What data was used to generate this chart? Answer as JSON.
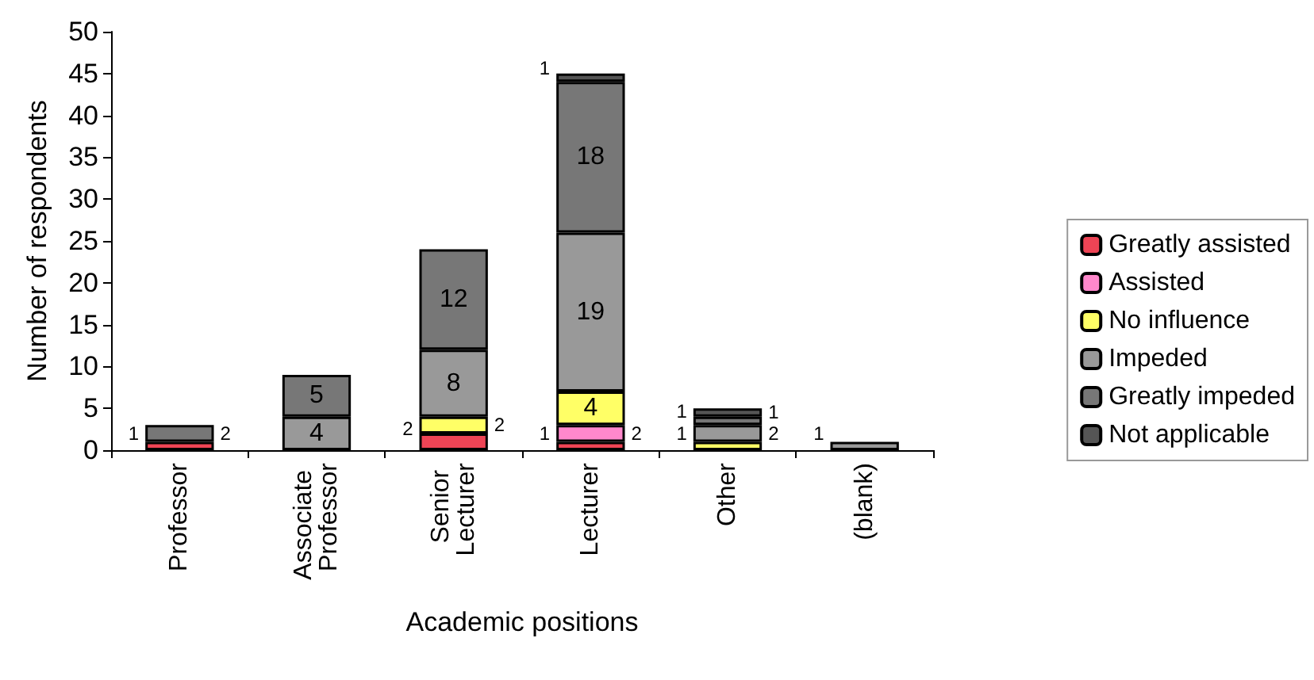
{
  "chart_data": {
    "type": "bar",
    "stacked": true,
    "data_labels": true,
    "xlabel": "Academic positions",
    "ylabel": "Number of respondents",
    "categories": [
      "Professor",
      "Associate Professor",
      "Senior Lecturer",
      "Lecturer",
      "Other",
      "(blank)"
    ],
    "ylim": [
      0,
      50
    ],
    "yticks": [
      0,
      5,
      10,
      15,
      20,
      25,
      30,
      35,
      40,
      45,
      50
    ],
    "grid": false,
    "legend": "right",
    "series": [
      {
        "name": "Greatly assisted",
        "color": "#ee4455",
        "values": [
          1,
          null,
          2,
          1,
          null,
          null
        ]
      },
      {
        "name": "Assisted",
        "color": "#ff88cc",
        "values": [
          null,
          null,
          null,
          2,
          null,
          null
        ]
      },
      {
        "name": "No influence",
        "color": "#ffff66",
        "values": [
          null,
          null,
          2,
          4,
          1,
          null
        ]
      },
      {
        "name": "Impeded",
        "color": "#999999",
        "values": [
          null,
          4,
          8,
          19,
          2,
          1
        ]
      },
      {
        "name": "Greatly impeded",
        "color": "#777777",
        "values": [
          2,
          5,
          12,
          18,
          1,
          null
        ]
      },
      {
        "name": "Not applicable",
        "color": "#555555",
        "values": [
          null,
          null,
          null,
          1,
          1,
          null
        ]
      }
    ]
  }
}
